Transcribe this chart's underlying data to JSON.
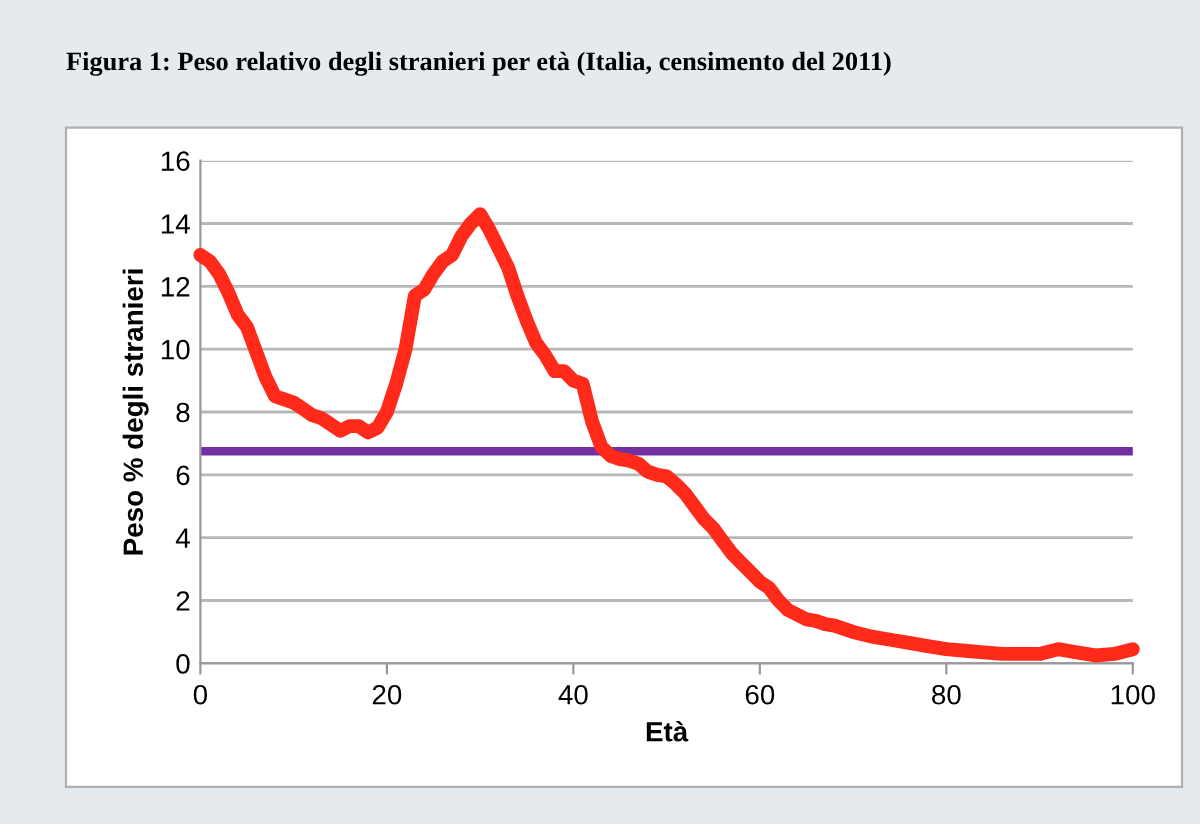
{
  "chart_data": {
    "type": "line",
    "title": "Figura 1: Peso relativo degli stranieri per età (Italia, censimento del 2011)",
    "xlabel": "Età",
    "ylabel": "Peso % degli stranieri",
    "x": [
      0,
      1,
      2,
      3,
      4,
      5,
      6,
      7,
      8,
      9,
      10,
      11,
      12,
      13,
      14,
      15,
      16,
      17,
      18,
      19,
      20,
      21,
      22,
      23,
      24,
      25,
      26,
      27,
      28,
      29,
      30,
      31,
      32,
      33,
      34,
      35,
      36,
      37,
      38,
      39,
      40,
      41,
      42,
      43,
      44,
      45,
      46,
      47,
      48,
      49,
      50,
      51,
      52,
      53,
      54,
      55,
      56,
      57,
      58,
      59,
      60,
      61,
      62,
      63,
      64,
      65,
      66,
      67,
      68,
      70,
      72,
      74,
      76,
      78,
      80,
      82,
      84,
      86,
      88,
      90,
      92,
      94,
      96,
      98,
      100
    ],
    "series": [
      {
        "color": "#ff2a1a",
        "values": [
          13.0,
          12.8,
          12.4,
          11.8,
          11.1,
          10.7,
          9.9,
          9.1,
          8.5,
          8.4,
          8.3,
          8.1,
          7.9,
          7.8,
          7.6,
          7.4,
          7.55,
          7.55,
          7.35,
          7.5,
          8.0,
          8.9,
          10.0,
          11.7,
          11.9,
          12.4,
          12.8,
          13.0,
          13.6,
          14.0,
          14.3,
          13.8,
          13.2,
          12.6,
          11.7,
          10.9,
          10.2,
          9.8,
          9.3,
          9.3,
          9.0,
          8.9,
          7.7,
          6.9,
          6.6,
          6.5,
          6.45,
          6.35,
          6.1,
          6.0,
          5.95,
          5.7,
          5.4,
          5.0,
          4.6,
          4.3,
          3.9,
          3.5,
          3.2,
          2.9,
          2.6,
          2.4,
          2.0,
          1.7,
          1.55,
          1.4,
          1.35,
          1.25,
          1.2,
          1.0,
          0.85,
          0.75,
          0.65,
          0.55,
          0.45,
          0.4,
          0.35,
          0.3,
          0.3,
          0.3,
          0.45,
          0.35,
          0.25,
          0.3,
          0.45
        ]
      }
    ],
    "ref_lines": [
      {
        "axis": "y",
        "value": 6.75,
        "color": "#7030a0"
      }
    ],
    "xlim": [
      0,
      100
    ],
    "xticks": [
      0,
      20,
      40,
      60,
      80,
      100
    ],
    "ylim": [
      0,
      16
    ],
    "yticks": [
      0,
      2,
      4,
      6,
      8,
      10,
      12,
      14,
      16
    ],
    "grid": "y",
    "legend": false,
    "marker": "none",
    "line_style": "solid"
  }
}
